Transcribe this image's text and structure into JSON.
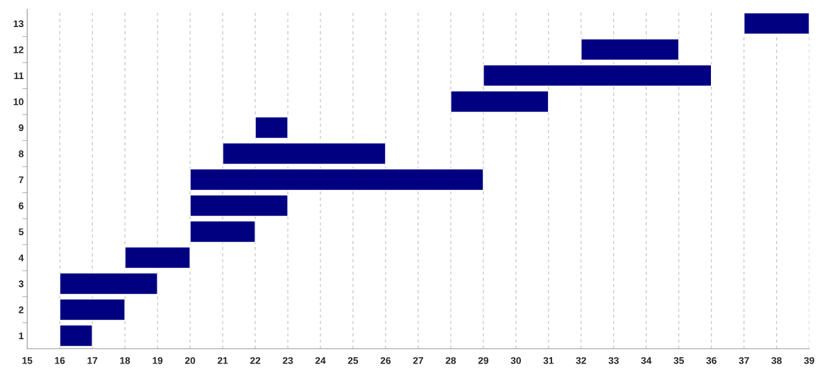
{
  "chart_data": {
    "type": "bar",
    "orientation": "horizontal",
    "categories": [
      "13",
      "12",
      "11",
      "10",
      "9",
      "8",
      "7",
      "6",
      "5",
      "4",
      "3",
      "2",
      "1"
    ],
    "base": [
      37,
      32,
      29,
      28,
      22,
      21,
      20,
      20,
      20,
      18,
      16,
      16,
      16
    ],
    "values": [
      2,
      3,
      7,
      3,
      1,
      5,
      9,
      3,
      2,
      2,
      3,
      2,
      1
    ],
    "color": "#000080",
    "xlim": [
      15,
      39
    ],
    "xticks": [
      15,
      16,
      17,
      18,
      19,
      20,
      21,
      22,
      23,
      24,
      25,
      26,
      27,
      28,
      29,
      30,
      31,
      32,
      33,
      34,
      35,
      36,
      37,
      38,
      39
    ],
    "grid": "x"
  }
}
